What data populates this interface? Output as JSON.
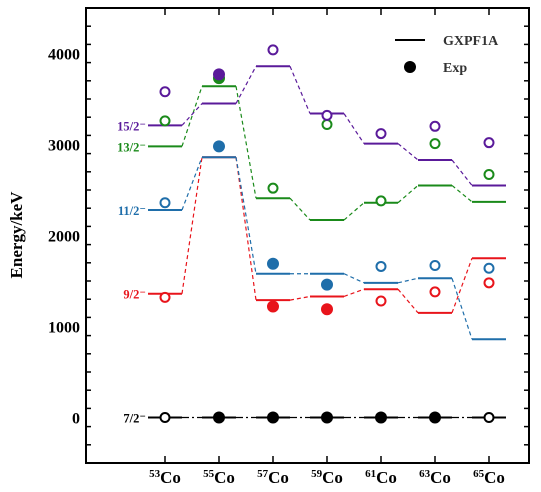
{
  "chart_data": {
    "type": "level-scheme",
    "ylabel": "Energy/keV",
    "ylim": [
      -500,
      4500
    ],
    "y_ticks": [
      "0",
      "1000",
      "2000",
      "3000",
      "4000"
    ],
    "y_tick_values": [
      0,
      1000,
      2000,
      3000,
      4000
    ],
    "categories": [
      {
        "mass": "53",
        "element": "Co"
      },
      {
        "mass": "55",
        "element": "Co"
      },
      {
        "mass": "57",
        "element": "Co"
      },
      {
        "mass": "59",
        "element": "Co"
      },
      {
        "mass": "61",
        "element": "Co"
      },
      {
        "mass": "63",
        "element": "Co"
      },
      {
        "mass": "65",
        "element": "Co"
      }
    ],
    "legend": {
      "position": "top-right",
      "entries": [
        {
          "label": "GXPF1A",
          "marker": "line"
        },
        {
          "label": "Exp",
          "marker": "filled-circle"
        }
      ]
    },
    "series": [
      {
        "spin_label": "7/2⁻",
        "color": "#000000",
        "theory": [
          0,
          0,
          0,
          0,
          0,
          0,
          0
        ],
        "exp": [
          0,
          0,
          0,
          0,
          0,
          0,
          0
        ],
        "exp_filled": [
          false,
          true,
          true,
          true,
          true,
          true,
          false
        ]
      },
      {
        "spin_label": "9/2⁻",
        "color": "#e8141b",
        "theory": [
          1360,
          2860,
          1290,
          1330,
          1410,
          1150,
          1750
        ],
        "exp": [
          1320,
          2980,
          1220,
          1190,
          1280,
          1380,
          1480
        ],
        "exp_filled": [
          false,
          false,
          true,
          true,
          false,
          false,
          false
        ]
      },
      {
        "spin_label": "11/2⁻",
        "color": "#1f6eaa",
        "theory": [
          2280,
          2860,
          1580,
          1580,
          1480,
          1530,
          860
        ],
        "exp": [
          2360,
          2980,
          1690,
          1460,
          1660,
          1670,
          1640
        ],
        "exp_filled": [
          false,
          true,
          true,
          true,
          false,
          false,
          false
        ]
      },
      {
        "spin_label": "13/2⁻",
        "color": "#1a8a1a",
        "theory": [
          2980,
          3640,
          2410,
          2170,
          2360,
          2550,
          2370
        ],
        "exp": [
          3260,
          3730,
          2520,
          3220,
          2380,
          3010,
          2670
        ],
        "exp_filled": [
          false,
          true,
          false,
          false,
          false,
          false,
          false
        ]
      },
      {
        "spin_label": "15/2⁻",
        "color": "#5a1a9a",
        "theory": [
          3210,
          3450,
          3860,
          3340,
          3010,
          2830,
          2550
        ],
        "exp": [
          3580,
          3770,
          4040,
          3320,
          3120,
          3200,
          3020
        ],
        "exp_filled": [
          false,
          true,
          false,
          false,
          false,
          false,
          false
        ]
      }
    ]
  }
}
